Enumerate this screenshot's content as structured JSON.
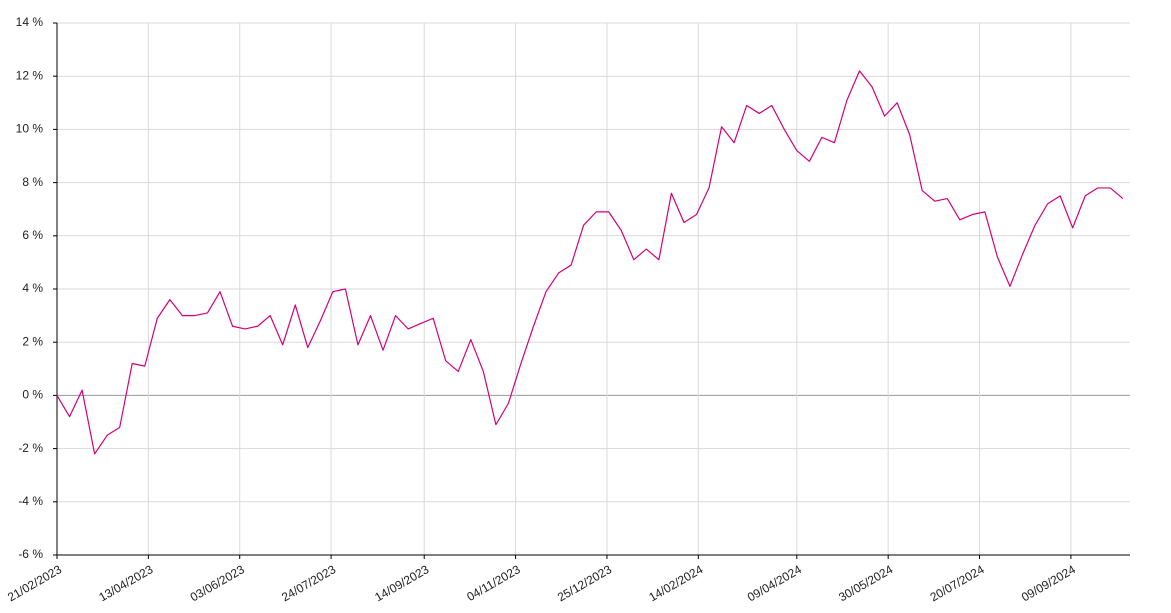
{
  "chart_data": {
    "type": "line",
    "x": [
      "21/02/2023",
      "28/02/2023",
      "07/03/2023",
      "14/03/2023",
      "21/03/2023",
      "28/03/2023",
      "04/04/2023",
      "11/04/2023",
      "18/04/2023",
      "25/04/2023",
      "02/05/2023",
      "09/05/2023",
      "16/05/2023",
      "23/05/2023",
      "30/05/2023",
      "06/06/2023",
      "13/06/2023",
      "20/06/2023",
      "27/06/2023",
      "04/07/2023",
      "11/07/2023",
      "18/07/2023",
      "25/07/2023",
      "01/08/2023",
      "08/08/2023",
      "15/08/2023",
      "22/08/2023",
      "29/08/2023",
      "05/09/2023",
      "12/09/2023",
      "19/09/2023",
      "26/09/2023",
      "03/10/2023",
      "10/10/2023",
      "17/10/2023",
      "24/10/2023",
      "31/10/2023",
      "07/11/2023",
      "14/11/2023",
      "21/11/2023",
      "28/11/2023",
      "05/12/2023",
      "12/12/2023",
      "19/12/2023",
      "26/12/2023",
      "02/01/2024",
      "09/01/2024",
      "16/01/2024",
      "23/01/2024",
      "30/01/2024",
      "06/02/2024",
      "13/02/2024",
      "20/02/2024",
      "27/02/2024",
      "05/03/2024",
      "12/03/2024",
      "19/03/2024",
      "26/03/2024",
      "02/04/2024",
      "09/04/2024",
      "16/04/2024",
      "23/04/2024",
      "30/04/2024",
      "07/05/2024",
      "14/05/2024",
      "21/05/2024",
      "28/05/2024",
      "04/06/2024",
      "11/06/2024",
      "18/06/2024",
      "25/06/2024",
      "02/07/2024",
      "09/07/2024",
      "16/07/2024",
      "23/07/2024",
      "30/07/2024",
      "06/08/2024",
      "13/08/2024",
      "20/08/2024",
      "27/08/2024",
      "03/09/2024",
      "10/09/2024",
      "17/09/2024",
      "24/09/2024",
      "01/10/2024",
      "08/10/2024"
    ],
    "values": [
      0,
      -0.8,
      0.2,
      -2.2,
      -1.5,
      -1.2,
      1.2,
      1.1,
      2.9,
      3.6,
      3.0,
      3.0,
      3.1,
      3.9,
      2.6,
      2.5,
      2.6,
      3.0,
      1.9,
      3.4,
      1.8,
      2.8,
      3.9,
      4.0,
      1.9,
      3.0,
      1.7,
      3.0,
      2.5,
      2.7,
      2.9,
      1.3,
      0.9,
      2.1,
      0.9,
      -1.1,
      -0.3,
      1.2,
      2.6,
      3.9,
      4.6,
      4.9,
      6.4,
      6.9,
      6.9,
      6.2,
      5.1,
      5.5,
      5.1,
      7.6,
      6.5,
      6.8,
      7.8,
      10.1,
      9.5,
      10.9,
      10.6,
      10.9,
      10.0,
      9.2,
      8.8,
      9.7,
      9.5,
      11.1,
      12.2,
      11.6,
      10.5,
      11.0,
      9.8,
      7.7,
      7.3,
      7.4,
      6.6,
      6.8,
      6.9,
      5.2,
      4.1,
      5.3,
      6.4,
      7.2,
      7.5,
      6.3,
      7.5,
      7.8,
      7.8,
      7.4
    ],
    "color": "#d4007a",
    "xlim": [
      "21/02/2023",
      "12/10/2024"
    ],
    "xticks": [
      "21/02/2023",
      "13/04/2023",
      "03/06/2023",
      "24/07/2023",
      "14/09/2023",
      "04/11/2023",
      "25/12/2023",
      "14/02/2024",
      "09/04/2024",
      "30/05/2024",
      "20/07/2024",
      "09/09/2024"
    ],
    "ylim": [
      -6,
      14
    ],
    "yticks": [
      {
        "value": -6,
        "label": "-6 %"
      },
      {
        "value": -4,
        "label": "-4 %"
      },
      {
        "value": -2,
        "label": "-2 %"
      },
      {
        "value": 0,
        "label": "0 %"
      },
      {
        "value": 2,
        "label": "2 %"
      },
      {
        "value": 4,
        "label": "4 %"
      },
      {
        "value": 6,
        "label": "6 %"
      },
      {
        "value": 8,
        "label": "8 %"
      },
      {
        "value": 10,
        "label": "10 %"
      },
      {
        "value": 12,
        "label": "12 %"
      },
      {
        "value": 14,
        "label": "14 %"
      }
    ],
    "grid": true
  }
}
